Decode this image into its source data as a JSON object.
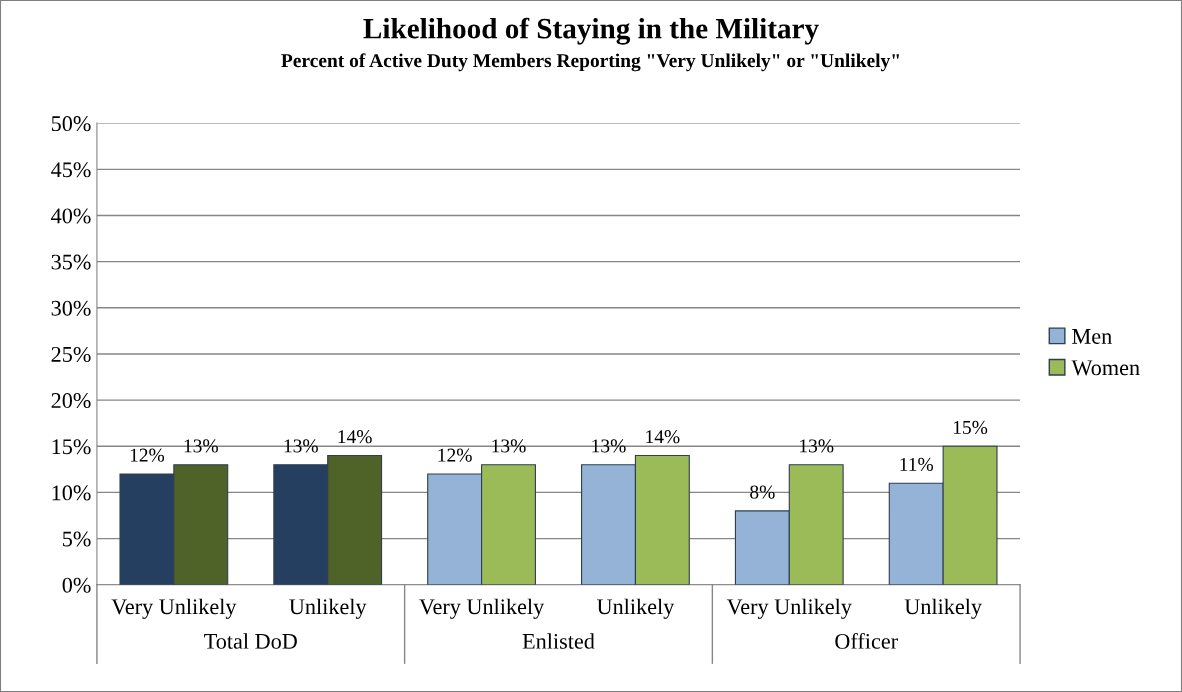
{
  "chart_data": {
    "type": "bar",
    "title": "Likelihood of Staying in the Military",
    "subtitle": "Percent of Active Duty Members Reporting \"Very Unlikely\" or \"Unlikely\"",
    "categories": [
      "Very Unlikely",
      "Unlikely",
      "Very Unlikely",
      "Unlikely",
      "Very Unlikely",
      "Unlikely"
    ],
    "annotations": [
      "Total DoD",
      "Enlisted",
      "Officer"
    ],
    "series": [
      {
        "name": "Men",
        "color": "#95b3d7",
        "colors": [
          "#243f60",
          "#243f60",
          "#95b3d7",
          "#95b3d7",
          "#95b3d7",
          "#95b3d7"
        ],
        "values": [
          12,
          13,
          12,
          13,
          8,
          11
        ],
        "value_labels": [
          "12%",
          "13%",
          "12%",
          "13%",
          "8%",
          "11%"
        ]
      },
      {
        "name": "Women",
        "color": "#9bbb59",
        "colors": [
          "#4f6228",
          "#4f6228",
          "#9bbb59",
          "#9bbb59",
          "#9bbb59",
          "#9bbb59"
        ],
        "values": [
          13,
          14,
          13,
          14,
          13,
          15
        ],
        "value_labels": [
          "13%",
          "14%",
          "13%",
          "14%",
          "13%",
          "15%"
        ]
      }
    ],
    "ylim": [
      0,
      50
    ],
    "yticks": [
      {
        "value": 0,
        "label": "0%"
      },
      {
        "value": 5,
        "label": "5%"
      },
      {
        "value": 10,
        "label": "10%"
      },
      {
        "value": 15,
        "label": "15%"
      },
      {
        "value": 20,
        "label": "20%"
      },
      {
        "value": 25,
        "label": "25%"
      },
      {
        "value": 30,
        "label": "30%"
      },
      {
        "value": 35,
        "label": "35%"
      },
      {
        "value": 40,
        "label": "40%"
      },
      {
        "value": 45,
        "label": "45%"
      },
      {
        "value": 50,
        "label": "50%"
      }
    ],
    "grid": "y",
    "legend": "right"
  }
}
